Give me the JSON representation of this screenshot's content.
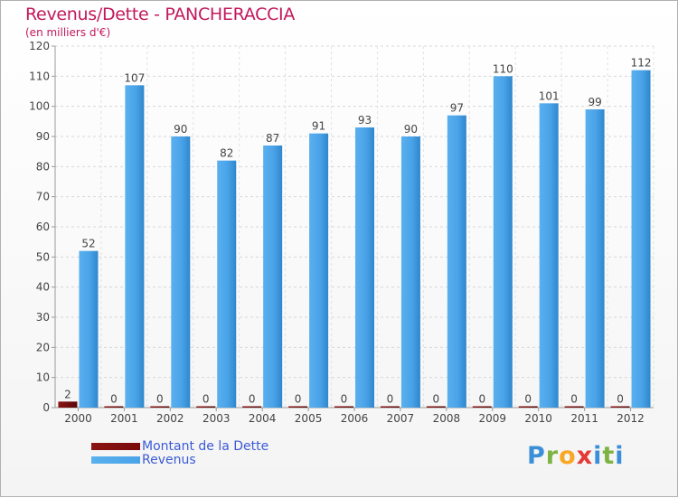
{
  "chart_data": {
    "type": "bar",
    "title": "Revenus/Dette - PANCHERACCIA",
    "subtitle": "(en milliers d'€)",
    "categories": [
      "2000",
      "2001",
      "2002",
      "2003",
      "2004",
      "2005",
      "2006",
      "2007",
      "2008",
      "2009",
      "2010",
      "2011",
      "2012"
    ],
    "series": [
      {
        "name": "Montant de la Dette",
        "color": "#7a0a0a",
        "values": [
          2,
          0,
          0,
          0,
          0,
          0,
          0,
          0,
          0,
          0,
          0,
          0,
          0
        ]
      },
      {
        "name": "Revenus",
        "color": "#4aa3e8",
        "values": [
          52,
          107,
          90,
          82,
          87,
          91,
          93,
          90,
          97,
          110,
          101,
          99,
          112
        ]
      }
    ],
    "ylim": [
      0,
      120
    ],
    "yticks": [
      0,
      10,
      20,
      30,
      40,
      50,
      60,
      70,
      80,
      90,
      100,
      110,
      120
    ],
    "grid": true,
    "legend_position": "bottom-left"
  },
  "logo": {
    "letters": [
      "P",
      "r",
      "o",
      "x",
      "i",
      "t",
      "i"
    ]
  }
}
